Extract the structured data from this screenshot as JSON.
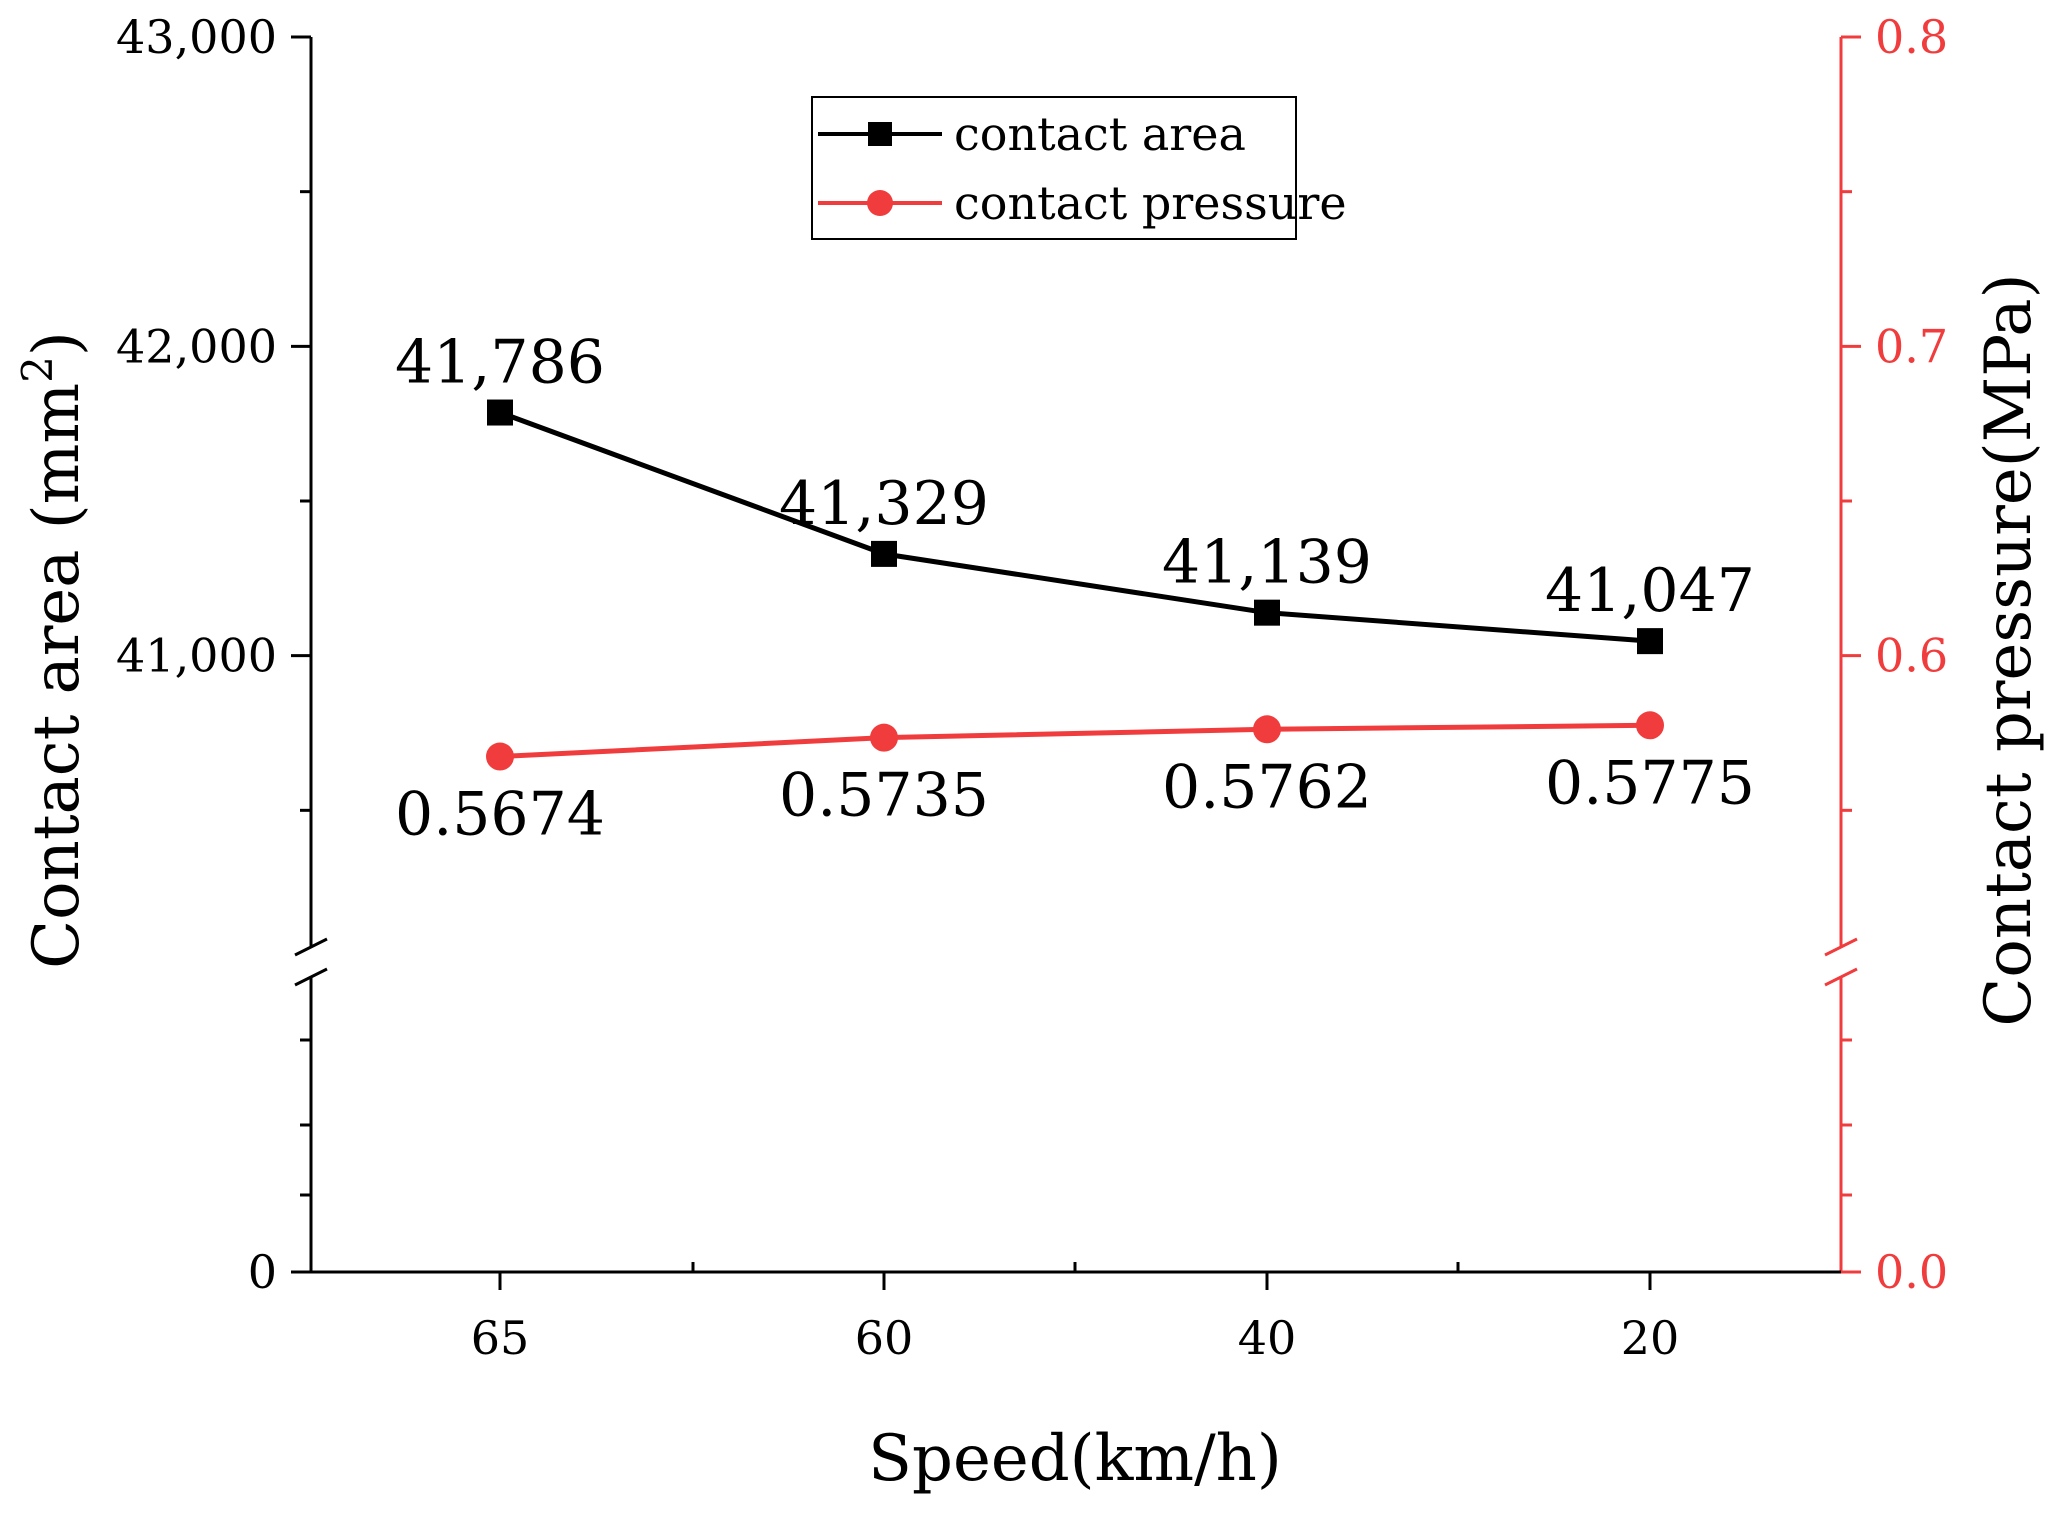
{
  "chart_data": {
    "type": "line",
    "title": "",
    "xlabel": "Speed(km/h)",
    "ylabel": "Contact area (mm",
    "ylabel_sup": "2",
    "ylabel_close": ")",
    "y2label": "Contact pressure(MPa)",
    "categories": [
      "65",
      "60",
      "40",
      "20"
    ],
    "series": [
      {
        "name": "contact area",
        "axis": "left",
        "marker": "square",
        "color": "#000000",
        "values": [
          41786,
          41329,
          41139,
          41047
        ],
        "labels": [
          "41,786",
          "41,329",
          "41,139",
          "41,047"
        ],
        "label_position": "above"
      },
      {
        "name": "contact pressure",
        "axis": "right",
        "marker": "circle",
        "color": "#f03c3c",
        "values": [
          0.5674,
          0.5735,
          0.5762,
          0.5775
        ],
        "labels": [
          "0.5674",
          "0.5735",
          "0.5762",
          "0.5775"
        ],
        "label_position": "below"
      }
    ],
    "y_left": {
      "ticks": [
        {
          "value": 0,
          "label": "0"
        },
        {
          "value": 41000,
          "label": "41,000"
        },
        {
          "value": 42000,
          "label": "42,000"
        },
        {
          "value": 43000,
          "label": "43,000"
        }
      ],
      "upper_range": [
        40000,
        43000
      ],
      "break_between": [
        0,
        40000
      ]
    },
    "y_right": {
      "color": "#f03c3c",
      "ticks": [
        {
          "value": 0.0,
          "label": "0.0"
        },
        {
          "value": 0.6,
          "label": "0.6"
        },
        {
          "value": 0.7,
          "label": "0.7"
        },
        {
          "value": 0.8,
          "label": "0.8"
        }
      ],
      "upper_range": [
        0.5,
        0.8
      ],
      "break_between": [
        0.0,
        0.5
      ]
    },
    "legend": {
      "position": "top-center",
      "entries": [
        "contact area",
        "contact pressure"
      ]
    },
    "grid": false
  }
}
